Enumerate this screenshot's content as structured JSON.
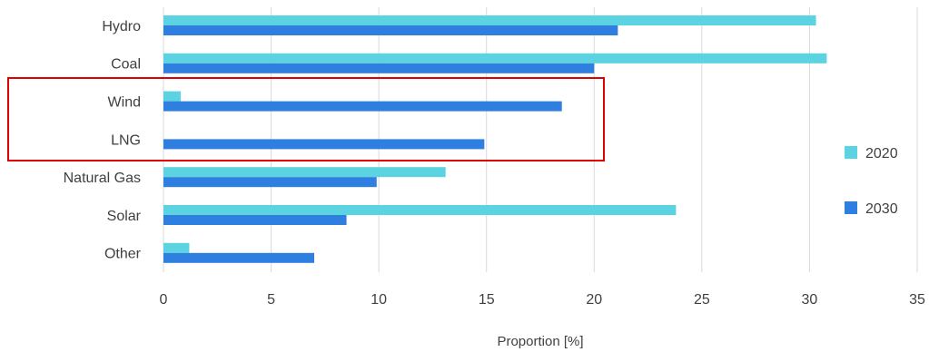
{
  "chart_data": {
    "type": "bar",
    "orientation": "horizontal",
    "categories": [
      "Hydro",
      "Coal",
      "Wind",
      "LNG",
      "Natural Gas",
      "Solar",
      "Other"
    ],
    "series": [
      {
        "name": "2020",
        "color": "#5bd3e0",
        "values": [
          30.3,
          30.8,
          0.8,
          0,
          13.1,
          23.8,
          1.2
        ]
      },
      {
        "name": "2030",
        "color": "#2f7fe0",
        "values": [
          21.1,
          20.0,
          18.5,
          14.9,
          9.9,
          8.5,
          7.0
        ]
      }
    ],
    "xlabel": "Proportion [%]",
    "ylabel": "",
    "title": "",
    "xlim": [
      0,
      35
    ],
    "xticks": [
      "0",
      "5",
      "10",
      "15",
      "20",
      "25",
      "30",
      "35"
    ],
    "grid": "vertical",
    "legend": "right",
    "highlight": {
      "categories": [
        "Wind",
        "LNG"
      ],
      "color": "#e00000"
    }
  }
}
